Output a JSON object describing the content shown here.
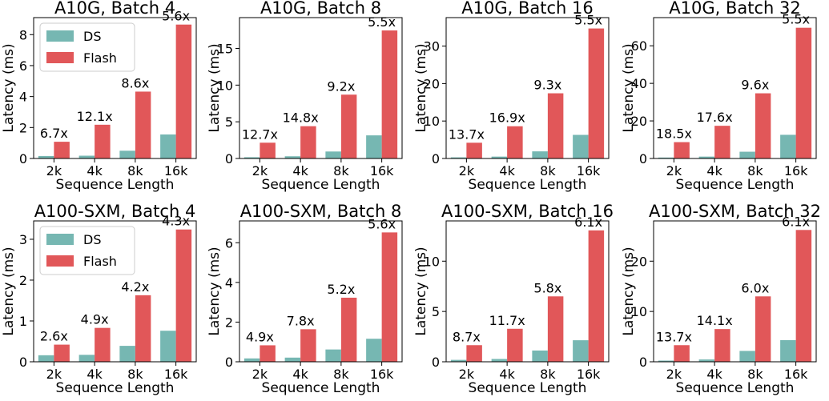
{
  "colors": {
    "ds": "#76b7b2",
    "flash": "#e15759"
  },
  "chart_data": [
    {
      "type": "bar",
      "title": "A10G, Batch 4",
      "xlabel": "Sequence Length",
      "ylabel": "Latency (ms)",
      "categories": [
        "2k",
        "4k",
        "8k",
        "16k"
      ],
      "ylim": [
        0,
        9.1
      ],
      "yticks": [
        "0",
        "2",
        "4",
        "6",
        "8"
      ],
      "ytick_values": [
        0,
        2,
        4,
        6,
        8
      ],
      "series": [
        {
          "name": "DS",
          "values": [
            0.16,
            0.18,
            0.5,
            1.55
          ]
        },
        {
          "name": "Flash",
          "values": [
            1.08,
            2.18,
            4.32,
            8.65
          ]
        }
      ],
      "speedups": [
        "6.7x",
        "12.1x",
        "8.6x",
        "5.6x"
      ],
      "legend": {
        "show": true,
        "placement": "top-left",
        "labels": [
          "DS",
          "Flash"
        ]
      }
    },
    {
      "type": "bar",
      "title": "A10G, Batch 8",
      "xlabel": "Sequence Length",
      "ylabel": "Latency (ms)",
      "categories": [
        "2k",
        "4k",
        "8k",
        "16k"
      ],
      "ylim": [
        0,
        19.2
      ],
      "yticks": [
        "0",
        "5",
        "10",
        "15"
      ],
      "ytick_values": [
        0,
        5,
        10,
        15
      ],
      "series": [
        {
          "name": "DS",
          "values": [
            0.17,
            0.3,
            0.95,
            3.15
          ]
        },
        {
          "name": "Flash",
          "values": [
            2.15,
            4.4,
            8.7,
            17.45
          ]
        }
      ],
      "speedups": [
        "12.7x",
        "14.8x",
        "9.2x",
        "5.5x"
      ],
      "legend": {
        "show": false
      }
    },
    {
      "type": "bar",
      "title": "A10G, Batch 16",
      "xlabel": "Sequence Length",
      "ylabel": "Latency (ms)",
      "categories": [
        "2k",
        "4k",
        "8k",
        "16k"
      ],
      "ylim": [
        0,
        37.6
      ],
      "yticks": [
        "0",
        "10",
        "20",
        "30"
      ],
      "ytick_values": [
        0,
        10,
        20,
        30
      ],
      "series": [
        {
          "name": "DS",
          "values": [
            0.3,
            0.5,
            1.9,
            6.3
          ]
        },
        {
          "name": "Flash",
          "values": [
            4.2,
            8.6,
            17.4,
            34.7
          ]
        }
      ],
      "speedups": [
        "13.7x",
        "16.9x",
        "9.3x",
        "5.5x"
      ],
      "legend": {
        "show": false
      }
    },
    {
      "type": "bar",
      "title": "A10G, Batch 32",
      "xlabel": "Sequence Length",
      "ylabel": "Latency (ms)",
      "categories": [
        "2k",
        "4k",
        "8k",
        "16k"
      ],
      "ylim": [
        0,
        75.0
      ],
      "yticks": [
        "0",
        "20",
        "40",
        "60"
      ],
      "ytick_values": [
        0,
        20,
        40,
        60
      ],
      "series": [
        {
          "name": "DS",
          "values": [
            0.5,
            1.0,
            3.6,
            12.6
          ]
        },
        {
          "name": "Flash",
          "values": [
            8.7,
            17.4,
            34.7,
            69.6
          ]
        }
      ],
      "speedups": [
        "18.5x",
        "17.6x",
        "9.6x",
        "5.5x"
      ],
      "legend": {
        "show": false
      }
    },
    {
      "type": "bar",
      "title": "A100-SXM, Batch 4",
      "xlabel": "Sequence Length",
      "ylabel": "Latency (ms)",
      "categories": [
        "2k",
        "4k",
        "8k",
        "16k"
      ],
      "ylim": [
        0,
        3.45
      ],
      "yticks": [
        "0",
        "1",
        "2",
        "3"
      ],
      "ytick_values": [
        0,
        1,
        2,
        3
      ],
      "series": [
        {
          "name": "DS",
          "values": [
            0.16,
            0.17,
            0.39,
            0.76
          ]
        },
        {
          "name": "Flash",
          "values": [
            0.42,
            0.83,
            1.63,
            3.24
          ]
        }
      ],
      "speedups": [
        "2.6x",
        "4.9x",
        "4.2x",
        "4.3x"
      ],
      "legend": {
        "show": true,
        "placement": "top-left",
        "labels": [
          "DS",
          "Flash"
        ]
      }
    },
    {
      "type": "bar",
      "title": "A100-SXM, Batch 8",
      "xlabel": "Sequence Length",
      "ylabel": "Latency (ms)",
      "categories": [
        "2k",
        "4k",
        "8k",
        "16k"
      ],
      "ylim": [
        0,
        7.1
      ],
      "yticks": [
        "0",
        "2",
        "4",
        "6"
      ],
      "ytick_values": [
        0,
        2,
        4,
        6
      ],
      "series": [
        {
          "name": "DS",
          "values": [
            0.17,
            0.21,
            0.62,
            1.16
          ]
        },
        {
          "name": "Flash",
          "values": [
            0.83,
            1.64,
            3.23,
            6.52
          ]
        }
      ],
      "speedups": [
        "4.9x",
        "7.8x",
        "5.2x",
        "5.6x"
      ],
      "legend": {
        "show": false
      }
    },
    {
      "type": "bar",
      "title": "A100-SXM, Batch 16",
      "xlabel": "Sequence Length",
      "ylabel": "Latency (ms)",
      "categories": [
        "2k",
        "4k",
        "8k",
        "16k"
      ],
      "ylim": [
        0,
        14.0
      ],
      "yticks": [
        "0",
        "5",
        "10"
      ],
      "ytick_values": [
        0,
        5,
        10
      ],
      "series": [
        {
          "name": "DS",
          "values": [
            0.19,
            0.28,
            1.12,
            2.14
          ]
        },
        {
          "name": "Flash",
          "values": [
            1.65,
            3.28,
            6.5,
            13.06
          ]
        }
      ],
      "speedups": [
        "8.7x",
        "11.7x",
        "5.8x",
        "6.1x"
      ],
      "legend": {
        "show": false
      }
    },
    {
      "type": "bar",
      "title": "A100-SXM, Batch 32",
      "xlabel": "Sequence Length",
      "ylabel": "Latency (ms)",
      "categories": [
        "2k",
        "4k",
        "8k",
        "16k"
      ],
      "ylim": [
        0,
        28.0
      ],
      "yticks": [
        "0",
        "10",
        "20"
      ],
      "ytick_values": [
        0,
        10,
        20
      ],
      "series": [
        {
          "name": "DS",
          "values": [
            0.24,
            0.46,
            2.16,
            4.3
          ]
        },
        {
          "name": "Flash",
          "values": [
            3.3,
            6.5,
            13.0,
            26.2
          ]
        }
      ],
      "speedups": [
        "13.7x",
        "14.1x",
        "6.0x",
        "6.1x"
      ],
      "legend": {
        "show": false
      }
    }
  ]
}
